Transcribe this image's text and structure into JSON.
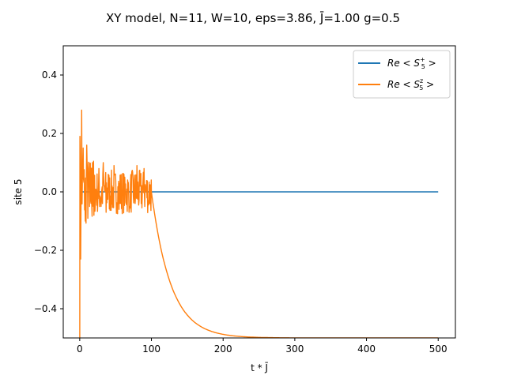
{
  "chart_data": {
    "type": "line",
    "title": "XY model, N=11, W=10,  eps=3.86,  J̄=1.00  g=0.5",
    "xlabel": "t * J̄",
    "ylabel": "site 5",
    "xlim": [
      -23,
      524
    ],
    "ylim": [
      -0.5,
      0.5
    ],
    "x_ticks": [
      0,
      100,
      200,
      300,
      400,
      500
    ],
    "x_tick_labels": [
      "0",
      "100",
      "200",
      "300",
      "400",
      "500"
    ],
    "y_ticks": [
      -0.4,
      -0.2,
      0.0,
      0.2,
      0.4
    ],
    "y_tick_labels": [
      "−0.4",
      "−0.2",
      "0.0",
      "0.2",
      "0.4"
    ],
    "grid": false,
    "legend_position": "top-right",
    "reference_line": {
      "y": -0.5,
      "style": "dashed",
      "color": "#555555"
    },
    "series": [
      {
        "name": "Re< S5+ >",
        "name_base": "Re",
        "name_sub": "5",
        "name_sup": "+",
        "color": "#1f77b4",
        "description": "constant zero from t=0 to t=500",
        "x": [
          0,
          500
        ],
        "y": [
          0.0,
          0.0
        ]
      },
      {
        "name": "Re< S5z >",
        "name_base": "Re",
        "name_sub": "5",
        "name_sup": "z",
        "color": "#ff7f0e",
        "start_y": -0.5,
        "noise_window": [
          0,
          100
        ],
        "noise_peaks": [
          [
            0.5,
            0.19
          ],
          [
            1.5,
            -0.23
          ],
          [
            3,
            0.28
          ],
          [
            5,
            0.15
          ],
          [
            8,
            -0.1
          ],
          [
            10,
            0.16
          ],
          [
            14,
            -0.05
          ],
          [
            18,
            0.1
          ],
          [
            20,
            -0.08
          ],
          [
            27,
            0.08
          ],
          [
            30,
            -0.05
          ],
          [
            33,
            0.1
          ],
          [
            37,
            -0.07
          ],
          [
            40,
            0.06
          ],
          [
            48,
            0.09
          ],
          [
            55,
            -0.06
          ],
          [
            63,
            0.05
          ],
          [
            70,
            -0.05
          ],
          [
            73,
            0.07
          ],
          [
            80,
            0.09
          ],
          [
            86,
            -0.04
          ],
          [
            90,
            0.08
          ],
          [
            96,
            -0.03
          ]
        ],
        "decay": {
          "t_start": 100,
          "y_start": 0.0,
          "y_end": -0.5,
          "tau": 27
        },
        "t_end": 500
      }
    ]
  }
}
